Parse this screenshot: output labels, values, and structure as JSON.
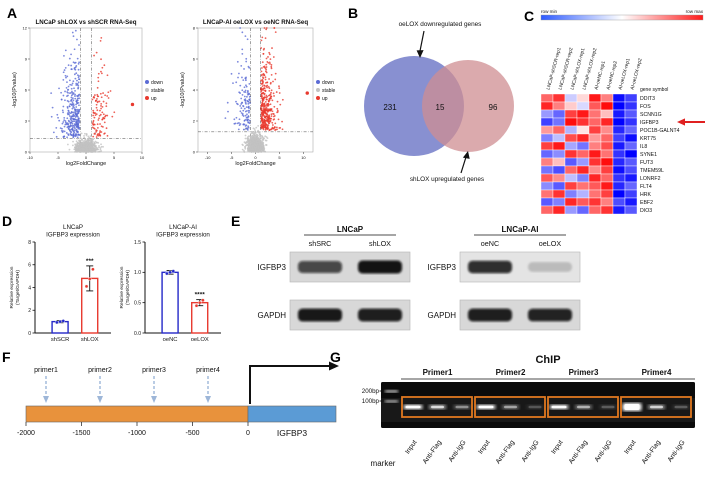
{
  "figure": {
    "panel_labels": {
      "A": "A",
      "B": "B",
      "C": "C",
      "D": "D",
      "E": "E",
      "F": "F",
      "G": "G"
    }
  },
  "chart_data": [
    {
      "id": "volcano_left",
      "type": "scatter",
      "subtype": "volcano",
      "title": "LNCaP shLOX vs shSCR RNA-Seq",
      "xlabel": "log2FoldChange",
      "ylabel": "-log10(Pvalue)",
      "xlim": [
        -10,
        10
      ],
      "ylim": [
        0,
        12
      ],
      "xticks": [
        -10,
        -5,
        0,
        5,
        10
      ],
      "yticks": [
        0,
        3,
        6,
        9,
        12
      ],
      "thresholds": {
        "log2fc": 1,
        "neglog10p": 1.3
      },
      "legend": [
        {
          "label": "down",
          "color": "#5b6bd5"
        },
        {
          "label": "stable",
          "color": "#c2c2c2"
        },
        {
          "label": "up",
          "color": "#e8392e"
        }
      ],
      "point_counts": {
        "down": 320,
        "stable": 750,
        "up": 110
      },
      "outliers": [
        {
          "x": 8.3,
          "y": 4.6,
          "class": "up"
        }
      ],
      "seed": 7
    },
    {
      "id": "volcano_right",
      "type": "scatter",
      "subtype": "volcano",
      "title": "LNCaP-AI oeLOX vs oeNC RNA-Seq",
      "xlabel": "log2FoldChange",
      "ylabel": "-log10(Pvalue)",
      "xlim": [
        -12,
        12
      ],
      "ylim": [
        0,
        8
      ],
      "xticks": [
        -10,
        -5,
        0,
        5,
        10
      ],
      "yticks": [
        0,
        2,
        4,
        6,
        8
      ],
      "thresholds": {
        "log2fc": 1,
        "neglog10p": 1.3
      },
      "legend": [
        {
          "label": "down",
          "color": "#5b6bd5"
        },
        {
          "label": "stable",
          "color": "#c2c2c2"
        },
        {
          "label": "up",
          "color": "#e8392e"
        }
      ],
      "point_counts": {
        "down": 130,
        "stable": 750,
        "up": 380
      },
      "outliers": [
        {
          "x": 10.8,
          "y": 3.8,
          "class": "up"
        }
      ],
      "seed": 13
    },
    {
      "id": "venn",
      "type": "venn",
      "sets": [
        {
          "label": "oeLOX downregulated genes",
          "unique_count": 231,
          "color": "#7f88cd"
        },
        {
          "label": "shLOX upregulated genes",
          "unique_count": 96,
          "color": "#cf8e92"
        }
      ],
      "overlap_count": 15
    },
    {
      "id": "heatmap",
      "type": "heatmap",
      "scale_labels": {
        "min": "row min",
        "max": "row max"
      },
      "columns": [
        "LNCaP-shSCR-rep1",
        "LNCaP-shSCR-rep2",
        "LNCaP-shLOX-rep1",
        "LNCaP-shLOX-rep2",
        "AI-oeNC-rep1",
        "AI-oeNC-rep2",
        "AI-oeLOX-rep1",
        "AI-oeLOX-rep2"
      ],
      "row_header": "gene symbol",
      "rows": [
        "DDIT3",
        "FOS",
        "SCNN1G",
        "IGFBP3",
        "POC1B-GALNT4",
        "KRT75",
        "IL8",
        "SYNE1",
        "FUT3",
        "TMEM59L",
        "LONRF2",
        "FLT4",
        "HRK",
        "EBF2",
        "DIO3"
      ],
      "highlighted_row": "IGFBP3",
      "vmin": -2,
      "vmax": 2,
      "values": [
        [
          1.2,
          1.6,
          -0.4,
          0.3,
          1.8,
          1.0,
          -1.9,
          -1.5
        ],
        [
          1.7,
          1.0,
          0.4,
          -0.3,
          1.3,
          1.9,
          -2.0,
          -1.6
        ],
        [
          -0.8,
          -1.2,
          1.5,
          1.8,
          1.1,
          0.5,
          -1.8,
          -1.3
        ],
        [
          -1.5,
          -1.1,
          1.9,
          1.6,
          1.2,
          1.7,
          -2.0,
          -1.6
        ],
        [
          0.8,
          1.2,
          -0.6,
          0.2,
          1.5,
          0.9,
          -1.7,
          -1.2
        ],
        [
          -1.0,
          -0.5,
          1.4,
          1.7,
          0.8,
          1.2,
          -1.5,
          -1.9
        ],
        [
          1.5,
          1.8,
          -0.7,
          -1.1,
          1.0,
          1.4,
          -1.8,
          -1.2
        ],
        [
          -1.2,
          -0.9,
          1.6,
          1.2,
          1.8,
          1.1,
          -1.6,
          -2.0
        ],
        [
          1.0,
          0.5,
          -1.3,
          -0.8,
          1.6,
          1.9,
          -1.7,
          -1.3
        ],
        [
          -1.1,
          -1.4,
          1.2,
          1.7,
          0.9,
          1.5,
          -1.9,
          -1.4
        ],
        [
          1.3,
          0.9,
          -0.5,
          -1.0,
          1.7,
          1.2,
          -1.6,
          -1.8
        ],
        [
          -0.9,
          -1.3,
          1.5,
          1.1,
          1.3,
          1.8,
          -1.7,
          -1.2
        ],
        [
          1.1,
          1.6,
          -1.0,
          -0.6,
          1.1,
          1.5,
          -2.0,
          -1.5
        ],
        [
          -1.3,
          -1.0,
          1.7,
          1.3,
          1.6,
          1.0,
          -1.4,
          -1.8
        ],
        [
          1.2,
          1.7,
          -0.8,
          -1.2,
          1.2,
          1.6,
          -1.8,
          -1.3
        ]
      ]
    },
    {
      "id": "bar_lncap",
      "type": "bar",
      "title_lines": [
        "LNCaP",
        "IGFBP3 expression"
      ],
      "ylabel_lines": [
        "Relative expression",
        "(Target/GAPDH)"
      ],
      "categories": [
        "shSCR",
        "shLOX"
      ],
      "values": [
        1.0,
        4.8
      ],
      "errors": [
        0.1,
        1.1
      ],
      "points": [
        [
          0.93,
          1.0,
          1.06
        ],
        [
          4.1,
          4.75,
          5.6
        ]
      ],
      "bar_colors": [
        "#2428c8",
        "#e8392e"
      ],
      "significance": "***",
      "sig_bar": 1,
      "ylim": [
        0,
        8
      ],
      "yticks": [
        0,
        2,
        4,
        6,
        8
      ],
      "ytick_labels": [
        "0",
        "2",
        "4",
        "6",
        "8"
      ]
    },
    {
      "id": "bar_ai",
      "type": "bar",
      "title_lines": [
        "LNCaP-AI",
        "IGFBP3 expression"
      ],
      "ylabel_lines": [
        "Relative expression",
        "(Target/GAPDH)"
      ],
      "categories": [
        "oeNC",
        "oeLOX"
      ],
      "values": [
        1.0,
        0.5
      ],
      "errors": [
        0.03,
        0.05
      ],
      "points": [
        [
          0.98,
          1.0,
          1.02
        ],
        [
          0.45,
          0.5,
          0.54
        ]
      ],
      "bar_colors": [
        "#2428c8",
        "#e8392e"
      ],
      "significance": "****",
      "sig_bar": 1,
      "ylim": [
        0,
        1.5
      ],
      "yticks": [
        0,
        0.5,
        1.0,
        1.5
      ],
      "ytick_labels": [
        "0.0",
        "0.5",
        "1.0",
        "1.5"
      ]
    }
  ],
  "western_blots": {
    "groups": [
      {
        "cell_line": "LNCaP",
        "lanes": [
          "shSRC",
          "shLOX"
        ],
        "rows": [
          {
            "protein": "IGFBP3",
            "band_intensities": [
              0.72,
              0.97
            ]
          },
          {
            "protein": "GAPDH",
            "band_intensities": [
              0.95,
              0.92
            ]
          }
        ]
      },
      {
        "cell_line": "LNCaP-AI",
        "lanes": [
          "oeNC",
          "oeLOX"
        ],
        "rows": [
          {
            "protein": "IGFBP3",
            "band_intensities": [
              0.85,
              0.18
            ]
          },
          {
            "protein": "GAPDH",
            "band_intensities": [
              0.92,
              0.9
            ]
          }
        ]
      }
    ]
  },
  "promoter_map": {
    "primers": [
      "primer1",
      "primer2",
      "primer3",
      "primer4"
    ],
    "ticks": [
      "-2000",
      "-1500",
      "-1000",
      "-500",
      "0"
    ],
    "gene_label": "IGFBP3",
    "upstream_color": "#e8923c",
    "gene_color": "#5b9bd5",
    "arrow_color": "#9db6d8"
  },
  "chip_gel": {
    "title": "ChIP",
    "groups": [
      {
        "name": "Primer1",
        "lanes": [
          "Input",
          "Anti-Flag",
          "Anti-IgG"
        ],
        "band_intensities": [
          0.95,
          0.6,
          0.28
        ]
      },
      {
        "name": "Primer2",
        "lanes": [
          "Input",
          "Anti-Flag",
          "Anti-IgG"
        ],
        "band_intensities": [
          0.9,
          0.35,
          0.1
        ]
      },
      {
        "name": "Primer3",
        "lanes": [
          "Input",
          "Anti-Flag",
          "Anti-IgG"
        ],
        "band_intensities": [
          0.85,
          0.4,
          0.12
        ]
      },
      {
        "name": "Primer4",
        "lanes": [
          "Input",
          "Anti-Flag",
          "Anti-IgG"
        ],
        "band_intensities": [
          1.0,
          0.55,
          0.12
        ]
      }
    ],
    "marker_label": "marker",
    "marker_sizes": [
      "200bp",
      "100bp"
    ],
    "box_color": "#e07820"
  }
}
